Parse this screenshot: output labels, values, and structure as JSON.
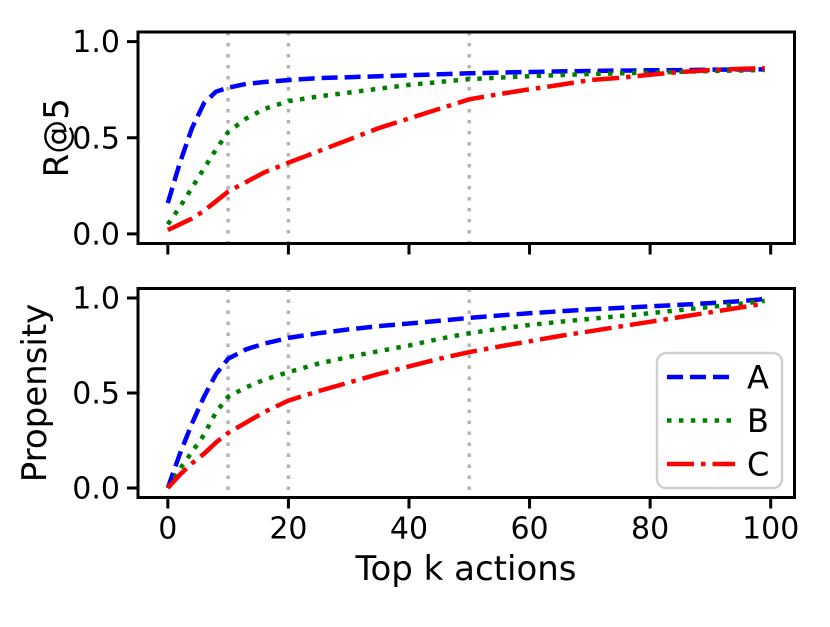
{
  "figure": {
    "background": "#ffffff",
    "axes_color": "#000000",
    "marker_line_color": "#b4b4b4",
    "legend_border_color": "#d0d0d0"
  },
  "chart_data": [
    {
      "type": "line",
      "title": "",
      "ylabel": "R@5",
      "xlabel": "",
      "x": [
        0,
        2,
        4,
        6,
        8,
        10,
        13,
        16,
        20,
        25,
        30,
        35,
        40,
        45,
        50,
        55,
        60,
        65,
        70,
        75,
        80,
        85,
        90,
        95,
        99
      ],
      "series": [
        {
          "name": "A",
          "color": "#0000ff",
          "linestyle": "dashed",
          "values": [
            0.16,
            0.37,
            0.55,
            0.68,
            0.74,
            0.76,
            0.78,
            0.79,
            0.8,
            0.81,
            0.815,
            0.82,
            0.825,
            0.83,
            0.835,
            0.839,
            0.842,
            0.845,
            0.847,
            0.849,
            0.851,
            0.852,
            0.854,
            0.855,
            0.856
          ]
        },
        {
          "name": "B",
          "color": "#008000",
          "linestyle": "dotted",
          "values": [
            0.05,
            0.14,
            0.24,
            0.34,
            0.44,
            0.53,
            0.6,
            0.65,
            0.69,
            0.715,
            0.735,
            0.755,
            0.775,
            0.79,
            0.805,
            0.813,
            0.82,
            0.826,
            0.831,
            0.835,
            0.839,
            0.843,
            0.847,
            0.85,
            0.853
          ]
        },
        {
          "name": "C",
          "color": "#ff0000",
          "linestyle": "dashdot",
          "values": [
            0.02,
            0.05,
            0.08,
            0.12,
            0.17,
            0.22,
            0.27,
            0.32,
            0.37,
            0.43,
            0.49,
            0.55,
            0.6,
            0.65,
            0.7,
            0.727,
            0.752,
            0.775,
            0.8,
            0.812,
            0.828,
            0.842,
            0.852,
            0.858,
            0.862
          ]
        }
      ],
      "xlim": [
        -4.95,
        103.95
      ],
      "ylim": [
        -0.05,
        1.05
      ],
      "xticks": [
        0,
        20,
        40,
        60,
        80,
        100
      ],
      "xticklabels": [],
      "yticks": [
        0.0,
        0.5,
        1.0
      ],
      "yticklabels": [
        "0.0",
        "0.5",
        "1.0"
      ],
      "vlines": {
        "x": [
          10,
          20,
          50
        ],
        "color": "#b4b4b4",
        "linestyle": "dotted"
      },
      "grid": false,
      "legend": null
    },
    {
      "type": "line",
      "title": "",
      "ylabel": "Propensity",
      "xlabel": "Top k actions",
      "x": [
        0,
        2,
        4,
        6,
        8,
        10,
        13,
        16,
        20,
        25,
        30,
        35,
        40,
        45,
        50,
        55,
        60,
        65,
        70,
        75,
        80,
        85,
        90,
        95,
        99
      ],
      "series": [
        {
          "name": "A",
          "color": "#0000ff",
          "linestyle": "dashed",
          "values": [
            0.0,
            0.18,
            0.34,
            0.48,
            0.6,
            0.68,
            0.73,
            0.76,
            0.79,
            0.815,
            0.835,
            0.852,
            0.866,
            0.88,
            0.895,
            0.908,
            0.92,
            0.93,
            0.94,
            0.948,
            0.956,
            0.964,
            0.973,
            0.983,
            0.995
          ]
        },
        {
          "name": "B",
          "color": "#008000",
          "linestyle": "dotted",
          "values": [
            0.0,
            0.1,
            0.19,
            0.28,
            0.4,
            0.48,
            0.53,
            0.57,
            0.61,
            0.655,
            0.69,
            0.72,
            0.75,
            0.785,
            0.815,
            0.838,
            0.858,
            0.875,
            0.89,
            0.905,
            0.92,
            0.937,
            0.953,
            0.97,
            0.985
          ]
        },
        {
          "name": "C",
          "color": "#ff0000",
          "linestyle": "dashdot",
          "values": [
            0.0,
            0.07,
            0.13,
            0.18,
            0.24,
            0.29,
            0.345,
            0.4,
            0.46,
            0.51,
            0.555,
            0.6,
            0.64,
            0.68,
            0.715,
            0.745,
            0.772,
            0.8,
            0.825,
            0.85,
            0.875,
            0.9,
            0.925,
            0.95,
            0.972
          ]
        }
      ],
      "xlim": [
        -4.95,
        103.95
      ],
      "ylim": [
        -0.05,
        1.05
      ],
      "xticks": [
        0,
        20,
        40,
        60,
        80,
        100
      ],
      "xticklabels": [
        "0",
        "20",
        "40",
        "60",
        "80",
        "100"
      ],
      "yticks": [
        0.0,
        0.5,
        1.0
      ],
      "yticklabels": [
        "0.0",
        "0.5",
        "1.0"
      ],
      "vlines": {
        "x": [
          10,
          20,
          50
        ],
        "color": "#b4b4b4",
        "linestyle": "dotted"
      },
      "grid": false,
      "legend": {
        "position": "center-right",
        "labels": [
          "A",
          "B",
          "C"
        ]
      }
    }
  ]
}
